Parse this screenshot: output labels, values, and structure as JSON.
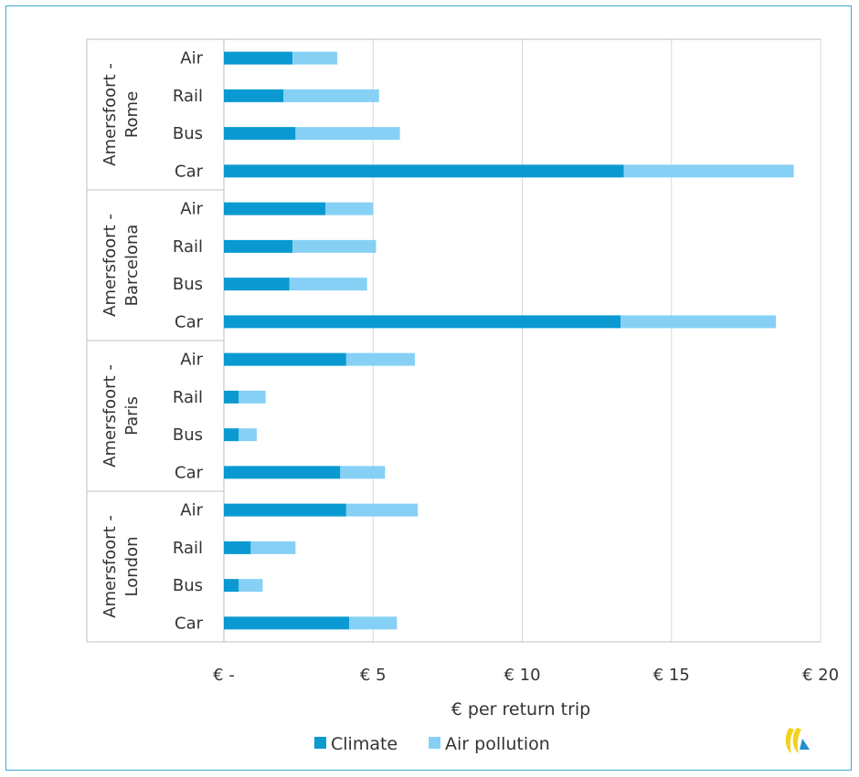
{
  "chart_data": {
    "type": "bar",
    "orientation": "horizontal",
    "stacked": true,
    "xlabel": "€ per return trip",
    "xlim": [
      0,
      20
    ],
    "xticks": [
      0,
      5,
      10,
      15,
      20
    ],
    "xtick_labels": [
      "€ -",
      "€ 5",
      "€ 10",
      "€ 15",
      "€ 20"
    ],
    "grid": true,
    "legend_position": "bottom",
    "colors": {
      "Climate": "#0a9ad1",
      "Air pollution": "#86d0f5"
    },
    "groups": [
      {
        "label_lines": [
          "Amersfoort -",
          "Rome"
        ],
        "categories": [
          "Air",
          "Rail",
          "Bus",
          "Car"
        ]
      },
      {
        "label_lines": [
          "Amersfoort -",
          "Barcelona"
        ],
        "categories": [
          "Air",
          "Rail",
          "Bus",
          "Car"
        ]
      },
      {
        "label_lines": [
          "Amersfoort -",
          "Paris"
        ],
        "categories": [
          "Air",
          "Rail",
          "Bus",
          "Car"
        ]
      },
      {
        "label_lines": [
          "Amersfoort -",
          "London"
        ],
        "categories": [
          "Air",
          "Rail",
          "Bus",
          "Car"
        ]
      }
    ],
    "series": [
      {
        "name": "Climate",
        "values": [
          2.3,
          2.0,
          2.4,
          13.4,
          3.4,
          2.3,
          2.2,
          13.3,
          4.1,
          0.5,
          0.5,
          3.9,
          4.1,
          0.9,
          0.5,
          4.2
        ]
      },
      {
        "name": "Air pollution",
        "values": [
          1.5,
          3.2,
          3.5,
          5.7,
          1.6,
          2.8,
          2.6,
          5.2,
          2.3,
          0.9,
          0.6,
          1.5,
          2.4,
          1.5,
          0.8,
          1.6
        ]
      }
    ]
  }
}
